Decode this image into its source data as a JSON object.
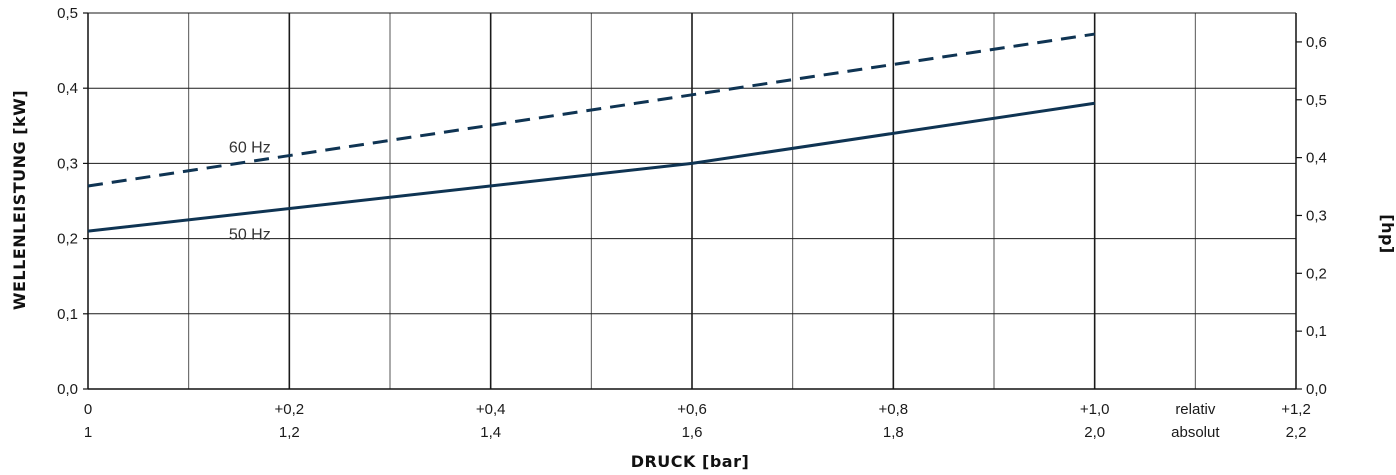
{
  "chart_data": {
    "type": "line",
    "xlabel": "DRUCK  [bar]",
    "ylabel": "WELLENLEISTUNG [kW]",
    "y2label": "[hp]",
    "xlim": [
      0,
      1.2
    ],
    "ylim": [
      0,
      0.5
    ],
    "y2lim": [
      0,
      0.65
    ],
    "x_grid_step": 0.1,
    "y_grid_step": 0.1,
    "grid": true,
    "x_ticks_relative": [
      {
        "value": 0,
        "label": "0"
      },
      {
        "value": 0.2,
        "label": "+0,2"
      },
      {
        "value": 0.4,
        "label": "+0,4"
      },
      {
        "value": 0.6,
        "label": "+0,6"
      },
      {
        "value": 0.8,
        "label": "+0,8"
      },
      {
        "value": 1.0,
        "label": "+1,0"
      },
      {
        "value": 1.2,
        "label": "+1,2"
      }
    ],
    "x_ticks_absolute": [
      {
        "value": 0,
        "label": "1"
      },
      {
        "value": 0.2,
        "label": "1,2"
      },
      {
        "value": 0.4,
        "label": "1,4"
      },
      {
        "value": 0.6,
        "label": "1,6"
      },
      {
        "value": 0.8,
        "label": "1,8"
      },
      {
        "value": 1.0,
        "label": "2,0"
      },
      {
        "value": 1.2,
        "label": "2,2"
      }
    ],
    "x_row_labels": {
      "relative": "relativ",
      "absolute": "absolut"
    },
    "y_ticks": [
      {
        "value": 0,
        "label": "0,0"
      },
      {
        "value": 0.1,
        "label": "0,1"
      },
      {
        "value": 0.2,
        "label": "0,2"
      },
      {
        "value": 0.3,
        "label": "0,3"
      },
      {
        "value": 0.4,
        "label": "0,4"
      },
      {
        "value": 0.5,
        "label": "0,5"
      }
    ],
    "y2_ticks": [
      {
        "value": 0,
        "label": "0,0"
      },
      {
        "value": 0.1,
        "label": "0,1"
      },
      {
        "value": 0.2,
        "label": "0,2"
      },
      {
        "value": 0.3,
        "label": "0,3"
      },
      {
        "value": 0.4,
        "label": "0,4"
      },
      {
        "value": 0.5,
        "label": "0,5"
      },
      {
        "value": 0.6,
        "label": "0,6"
      }
    ],
    "series": [
      {
        "name": "60 Hz",
        "style": "dashed",
        "color": "#0f3453",
        "x": [
          0,
          1.0
        ],
        "y": [
          0.27,
          0.472
        ]
      },
      {
        "name": "50 Hz",
        "style": "solid",
        "color": "#0f3453",
        "x": [
          0,
          0.6,
          1.0
        ],
        "y": [
          0.21,
          0.3,
          0.38
        ]
      }
    ]
  }
}
